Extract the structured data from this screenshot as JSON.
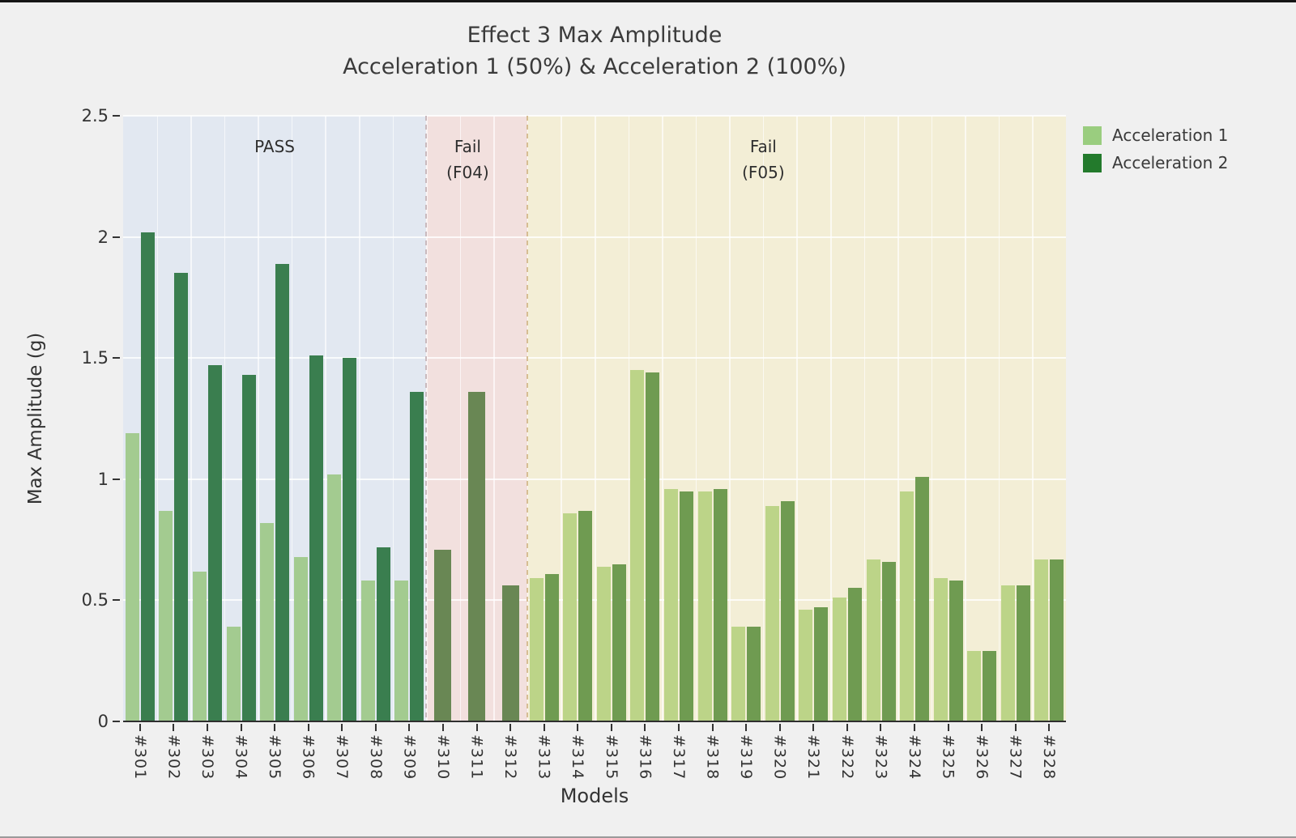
{
  "title": {
    "line1": "Effect 3 Max Amplitude",
    "line2": "Acceleration 1 (50%) & Acceleration 2 (100%)"
  },
  "axes": {
    "ylabel": "Max Amplitude (g)",
    "xlabel": "Models",
    "yticks": [
      "2.5",
      "2",
      "1.5",
      "1",
      "0.5",
      "0"
    ]
  },
  "legend": [
    {
      "label": "Acceleration 1",
      "color": "#9acd7f"
    },
    {
      "label": "Acceleration 2",
      "color": "#237a2c"
    }
  ],
  "regions": [
    {
      "name": "PASS",
      "label_line1": "PASS",
      "label_line2": "",
      "start_index": 0,
      "end_index": 9,
      "bg_color": "#e2e8f1",
      "bar1_color": "#a3cb90",
      "bar2_color": "#3a7e4f",
      "divider_after_color": "#c9b9bd"
    },
    {
      "name": "Fail (F04)",
      "label_line1": "Fail",
      "label_line2": "(F04)",
      "start_index": 9,
      "end_index": 12,
      "bg_color": "#f2e0de",
      "bar1_color": "#698754",
      "bar2_color": "#698754",
      "divider_after_color": "#d6bd93"
    },
    {
      "name": "Fail (F05)",
      "label_line1": "Fail",
      "label_line2": "(F05)",
      "start_index": 12,
      "end_index": 28,
      "bg_color": "#f3eed6",
      "bar1_color": "#bcd488",
      "bar2_color": "#6f9b51"
    }
  ],
  "chart_data": {
    "type": "bar",
    "title": "Effect 3 Max Amplitude — Acceleration 1 (50%) & Acceleration 2 (100%)",
    "xlabel": "Models",
    "ylabel": "Max Amplitude (g)",
    "ylim": [
      0,
      2.5
    ],
    "grid": true,
    "legend_position": "top-right",
    "annotations": [
      "PASS",
      "Fail (F04)",
      "Fail (F05)"
    ],
    "categories": [
      "#301",
      "#302",
      "#303",
      "#304",
      "#305",
      "#306",
      "#307",
      "#308",
      "#309",
      "#310",
      "#311",
      "#312",
      "#313",
      "#314",
      "#315",
      "#316",
      "#317",
      "#318",
      "#319",
      "#320",
      "#321",
      "#322",
      "#323",
      "#324",
      "#325",
      "#326",
      "#327",
      "#328"
    ],
    "series": [
      {
        "name": "Acceleration 1",
        "values": [
          1.19,
          0.87,
          0.62,
          0.39,
          0.82,
          0.68,
          1.02,
          0.58,
          0.58,
          null,
          null,
          null,
          0.59,
          0.86,
          0.64,
          1.45,
          0.96,
          0.95,
          0.39,
          0.89,
          0.46,
          0.51,
          0.67,
          0.95,
          0.59,
          0.29,
          0.56,
          0.67
        ]
      },
      {
        "name": "Acceleration 2",
        "values": [
          2.02,
          1.85,
          1.47,
          1.43,
          1.89,
          1.51,
          1.5,
          0.72,
          1.36,
          0.71,
          1.36,
          0.56,
          0.61,
          0.87,
          0.65,
          1.44,
          0.95,
          0.96,
          0.39,
          0.91,
          0.47,
          0.55,
          0.66,
          1.01,
          0.58,
          0.29,
          0.56,
          0.67
        ]
      }
    ]
  }
}
